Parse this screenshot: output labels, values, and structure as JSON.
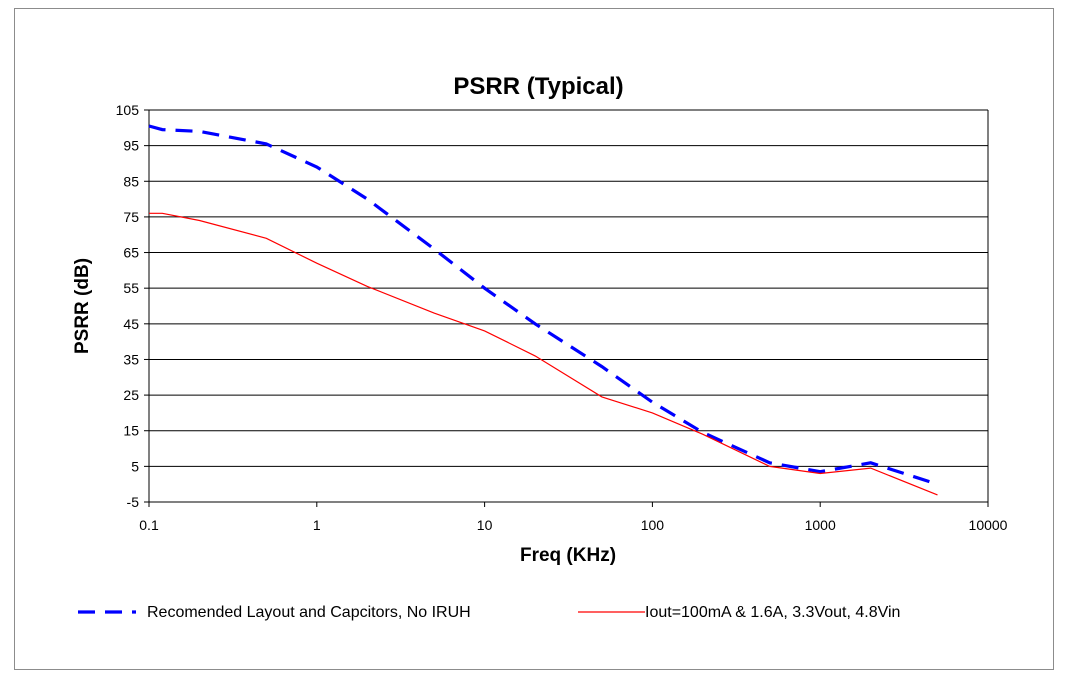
{
  "chart_data": {
    "type": "line",
    "title": "PSRR (Typical)",
    "xlabel": "Freq (KHz)",
    "ylabel": "PSRR (dB)",
    "xscale": "log",
    "xlim": [
      0.1,
      10000
    ],
    "ylim": [
      -5,
      105
    ],
    "xticks": [
      0.1,
      1,
      10,
      100,
      1000,
      10000
    ],
    "xtick_labels": [
      "0.1",
      "1",
      "10",
      "100",
      "1000",
      "10000"
    ],
    "yticks": [
      -5,
      5,
      15,
      25,
      35,
      45,
      55,
      65,
      75,
      85,
      95,
      105
    ],
    "ytick_labels": [
      "-5",
      "5",
      "15",
      "25",
      "35",
      "45",
      "55",
      "65",
      "75",
      "85",
      "95",
      "105"
    ],
    "grid": "horizontal",
    "legend_position": "bottom",
    "series": [
      {
        "name": "Recomended Layout and Capcitors, No IRUH",
        "color": "#0000ff",
        "style": "dashed",
        "x": [
          0.1,
          0.12,
          0.2,
          0.5,
          1,
          2,
          5,
          10,
          20,
          50,
          100,
          200,
          500,
          1000,
          2000,
          5000
        ],
        "y": [
          100.5,
          99.5,
          99,
          95.5,
          89,
          80,
          66,
          55,
          45,
          33,
          23,
          14.5,
          6,
          3.5,
          6,
          0
        ]
      },
      {
        "name": "Iout=100mA & 1.6A, 3.3Vout, 4.8Vin",
        "color": "#ff0000",
        "style": "solid",
        "x": [
          0.1,
          0.12,
          0.2,
          0.5,
          1,
          2,
          5,
          10,
          20,
          50,
          100,
          200,
          500,
          1000,
          2000,
          5000
        ],
        "y": [
          76,
          76,
          74,
          69,
          62,
          55.5,
          48,
          43,
          36,
          24.5,
          20,
          14,
          5,
          3,
          4.5,
          -3
        ]
      }
    ]
  }
}
